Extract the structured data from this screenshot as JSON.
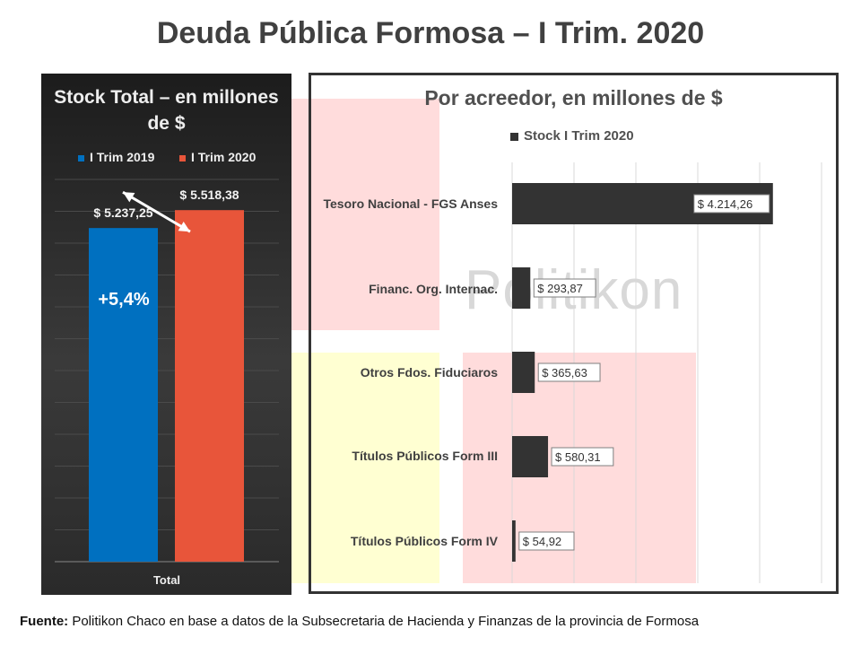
{
  "title": "Deuda Pública Formosa – I Trim. 2020",
  "watermark": "Politikon",
  "colors": {
    "blue": "#0070c0",
    "red": "#e8553a",
    "dark": "#333333"
  },
  "chart_data": [
    {
      "type": "bar",
      "title": "Stock Total – en millones de $",
      "categories": [
        "Total"
      ],
      "series": [
        {
          "name": "I Trim 2019",
          "values": [
            5237.25
          ],
          "color": "#0070c0",
          "label": "$ 5.237,25"
        },
        {
          "name": "I Trim 2020",
          "values": [
            5518.38
          ],
          "color": "#e8553a",
          "label": "$ 5.518,38"
        }
      ],
      "annotation": "+5,4%",
      "ylim": [
        0,
        6000
      ],
      "grid": true,
      "legend": "top"
    },
    {
      "type": "bar",
      "orientation": "horizontal",
      "title": "Por acreedor, en millones de $",
      "categories": [
        "Tesoro Nacional - FGS Anses",
        "Financ. Org. Internac.",
        "Otros Fdos. Fiduciaros",
        "Títulos Públicos Form III",
        "Títulos Públicos Form IV"
      ],
      "series": [
        {
          "name": "Stock I Trim 2020",
          "values": [
            4214.26,
            293.87,
            365.63,
            580.31,
            54.92
          ],
          "labels": [
            "$ 4.214,26",
            "$ 293,87",
            "$ 365,63",
            "$ 580,31",
            "$ 54,92"
          ]
        }
      ],
      "xlim": [
        0,
        5000
      ],
      "grid": true,
      "legend": "top"
    }
  ],
  "footer": {
    "label": "Fuente:",
    "text": " Politikon Chaco en base a datos de la Subsecretaria de Hacienda y Finanzas de la provincia de Formosa"
  }
}
